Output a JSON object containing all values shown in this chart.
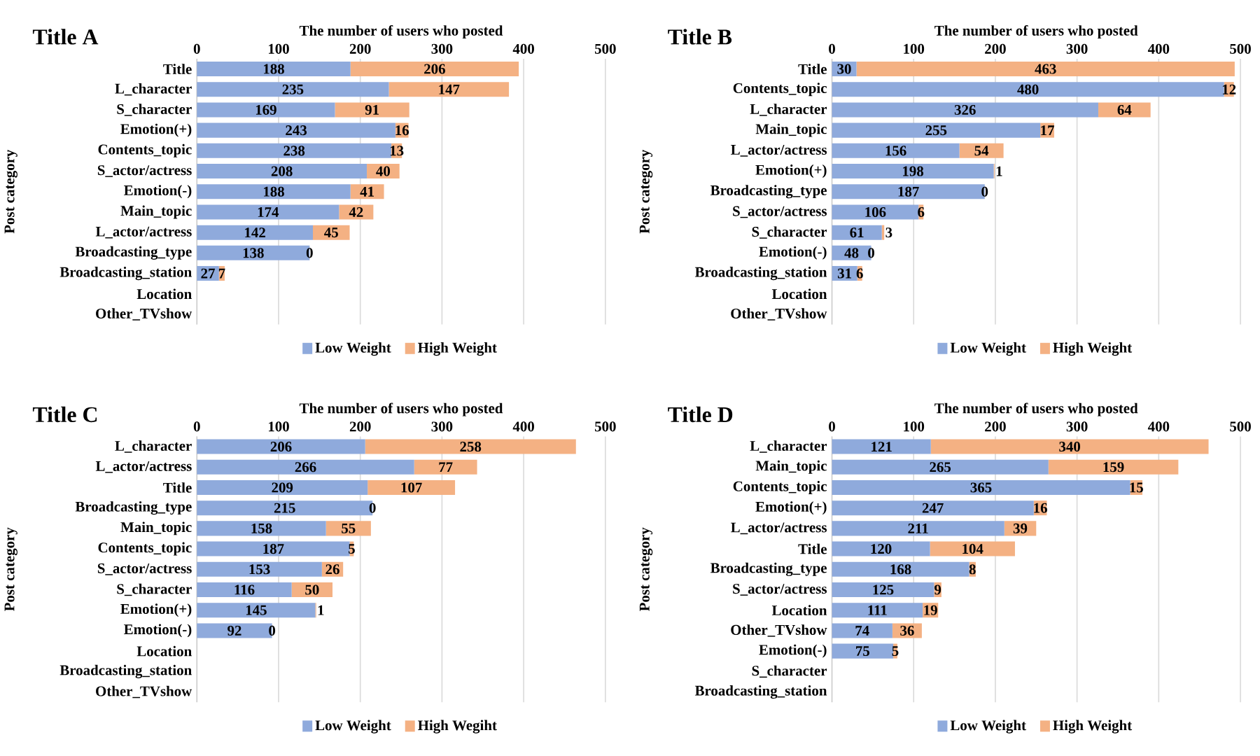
{
  "chart_data": [
    {
      "type": "bar",
      "orientation": "horizontal",
      "stacked": true,
      "title": "Title A",
      "xlabel": "The number of users who posted",
      "ylabel": "Post category",
      "categories": [
        "Title",
        "L_character",
        "S_character",
        "Emotion(+)",
        "Contents_topic",
        "S_actor/actress",
        "Emotion(-)",
        "Main_topic",
        "L_actor/actress",
        "Broadcasting_type",
        "Broadcasting_station",
        "Location",
        "Other_TVshow"
      ],
      "series": [
        {
          "name": "Low Weight",
          "color": "#8faadc",
          "values": [
            188,
            235,
            169,
            243,
            238,
            208,
            188,
            174,
            142,
            138,
            27,
            null,
            null
          ]
        },
        {
          "name": "High Weight",
          "color": "#f4b183",
          "values": [
            206,
            147,
            91,
            16,
            13,
            40,
            41,
            42,
            45,
            0,
            7,
            null,
            null
          ]
        }
      ],
      "xlim": [
        0,
        500
      ],
      "xticks": [
        0,
        100,
        200,
        300,
        400,
        500
      ],
      "grid": "x",
      "legend": "bottom",
      "data_labels": true
    },
    {
      "type": "bar",
      "orientation": "horizontal",
      "stacked": true,
      "title": "Title B",
      "xlabel": "The number of users who posted",
      "ylabel": "Post category",
      "categories": [
        "Title",
        "Contents_topic",
        "L_character",
        "Main_topic",
        "L_actor/actress",
        "Emotion(+)",
        "Broadcasting_type",
        "S_actor/actress",
        "S_character",
        "Emotion(-)",
        "Broadcasting_station",
        "Location",
        "Other_TVshow"
      ],
      "series": [
        {
          "name": "Low Weight",
          "color": "#8faadc",
          "values": [
            30,
            480,
            326,
            255,
            156,
            198,
            187,
            106,
            61,
            48,
            31,
            null,
            null
          ]
        },
        {
          "name": "High Weight",
          "color": "#f4b183",
          "values": [
            463,
            12,
            64,
            17,
            54,
            1,
            0,
            6,
            3,
            0,
            6,
            null,
            null
          ]
        }
      ],
      "xlim": [
        0,
        500
      ],
      "xticks": [
        0,
        100,
        200,
        300,
        400,
        500
      ],
      "grid": "x",
      "legend": "bottom",
      "data_labels": true
    },
    {
      "type": "bar",
      "orientation": "horizontal",
      "stacked": true,
      "title": "Title C",
      "xlabel": "The number of users who posted",
      "ylabel": "Post category",
      "categories": [
        "L_character",
        "L_actor/actress",
        "Title",
        "Broadcasting_type",
        "Main_topic",
        "Contents_topic",
        "S_actor/actress",
        "S_character",
        "Emotion(+)",
        "Emotion(-)",
        "Location",
        "Broadcasting_station",
        "Other_TVshow"
      ],
      "series": [
        {
          "name": "Low Weight",
          "color": "#8faadc",
          "values": [
            206,
            266,
            209,
            215,
            158,
            187,
            153,
            116,
            145,
            92,
            null,
            null,
            null
          ]
        },
        {
          "name": "High Wegiht",
          "color": "#f4b183",
          "values": [
            258,
            77,
            107,
            0,
            55,
            5,
            26,
            50,
            1,
            0,
            null,
            null,
            null
          ]
        }
      ],
      "xlim": [
        0,
        500
      ],
      "xticks": [
        0,
        100,
        200,
        300,
        400,
        500
      ],
      "grid": "x",
      "legend": "bottom",
      "data_labels": true
    },
    {
      "type": "bar",
      "orientation": "horizontal",
      "stacked": true,
      "title": "Title D",
      "xlabel": "The number of users who posted",
      "ylabel": "Post category",
      "categories": [
        "L_character",
        "Main_topic",
        "Contents_topic",
        "Emotion(+)",
        "L_actor/actress",
        "Title",
        "Broadcasting_type",
        "S_actor/actress",
        "Location",
        "Other_TVshow",
        "Emotion(-)",
        "S_character",
        "Broadcasting_station"
      ],
      "series": [
        {
          "name": "Low Weight",
          "color": "#8faadc",
          "values": [
            121,
            265,
            365,
            247,
            211,
            120,
            168,
            125,
            111,
            74,
            75,
            null,
            null
          ]
        },
        {
          "name": "High Weight",
          "color": "#f4b183",
          "values": [
            340,
            159,
            15,
            16,
            39,
            104,
            8,
            9,
            19,
            36,
            5,
            null,
            null
          ]
        }
      ],
      "xlim": [
        0,
        500
      ],
      "xticks": [
        0,
        100,
        200,
        300,
        400,
        500
      ],
      "grid": "x",
      "legend": "bottom",
      "data_labels": true
    }
  ]
}
